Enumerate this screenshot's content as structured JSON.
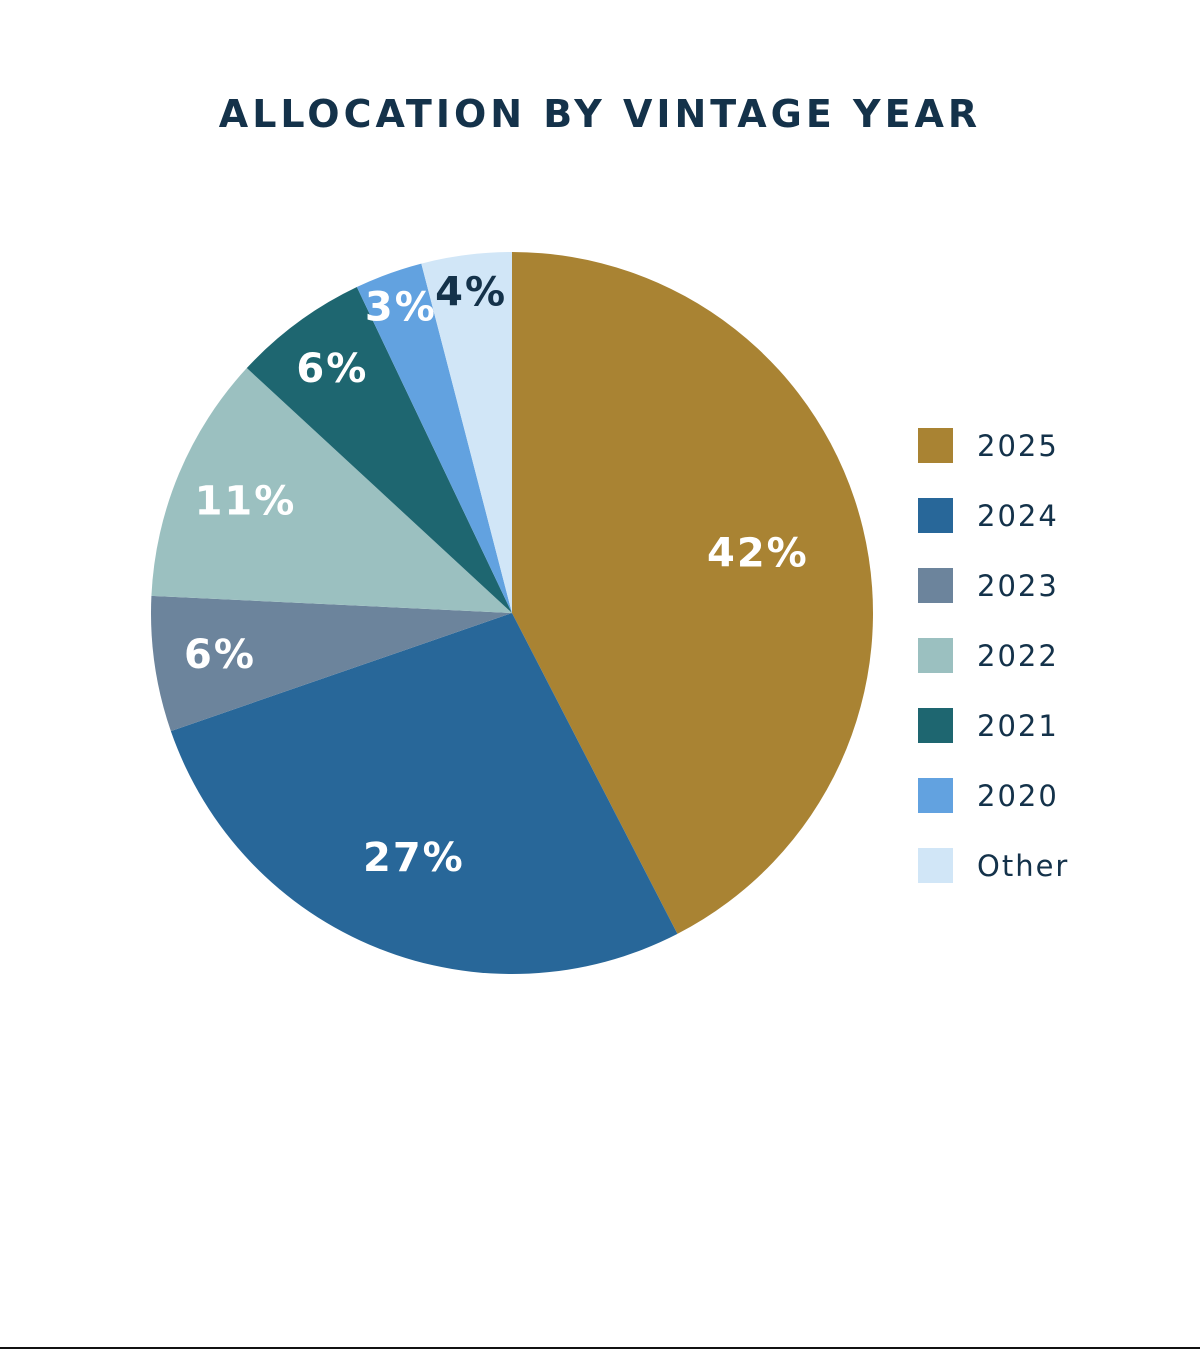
{
  "chart_data": {
    "type": "pie",
    "title": "ALLOCATION BY VINTAGE YEAR",
    "start_angle": "top",
    "direction": "clockwise",
    "legend_position": "right",
    "slices": [
      {
        "label": "2025",
        "value": 42,
        "display": "42%",
        "color": "#a98333",
        "text_color": "#ffffff"
      },
      {
        "label": "2024",
        "value": 27,
        "display": "27%",
        "color": "#286799",
        "text_color": "#ffffff"
      },
      {
        "label": "2023",
        "value": 6,
        "display": "6%",
        "color": "#6c849c",
        "text_color": "#ffffff"
      },
      {
        "label": "2022",
        "value": 11,
        "display": "11%",
        "color": "#9bc0c0",
        "text_color": "#ffffff"
      },
      {
        "label": "2021",
        "value": 6,
        "display": "6%",
        "color": "#1e6670",
        "text_color": "#ffffff"
      },
      {
        "label": "2020",
        "value": 3,
        "display": "3%",
        "color": "#62a2e0",
        "text_color": "#ffffff"
      },
      {
        "label": "Other",
        "value": 4,
        "display": "4%",
        "color": "#d1e6f7",
        "text_color": "#14324a"
      }
    ]
  }
}
